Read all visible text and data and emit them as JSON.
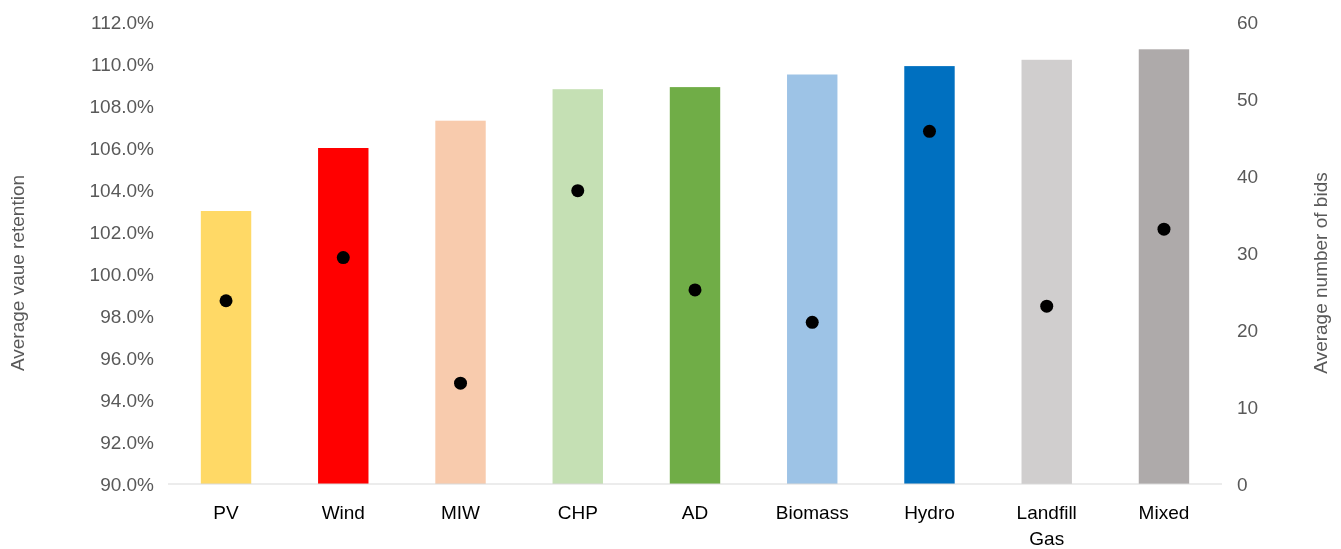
{
  "chart_data": {
    "type": "bar",
    "ylabel": "Average vaue retention",
    "y2label": "Average number of bids",
    "categories": [
      "PV",
      "Wind",
      "MIW",
      "CHP",
      "AD",
      "Biomass",
      "Hydro",
      "Landfill Gas",
      "Mixed"
    ],
    "series": [
      {
        "colors": [
          "#ffd966",
          "#ff0000",
          "#f8cbad",
          "#c5e0b4",
          "#70ad47",
          "#9dc3e6",
          "#0070c0",
          "#d0cece",
          "#aeaaaa"
        ],
        "values": [
          103.0,
          106.0,
          107.3,
          108.8,
          108.9,
          109.5,
          109.9,
          110.2,
          110.7
        ]
      },
      {
        "type": "scatter",
        "axis": "y2",
        "color": "#000000",
        "marker": "circle",
        "values": [
          23.8,
          29.4,
          13.1,
          38.1,
          25.2,
          21.0,
          45.8,
          23.1,
          33.1
        ]
      }
    ],
    "ylim": [
      90,
      112
    ],
    "yticks": [
      {
        "value": 90,
        "label": "90.0%"
      },
      {
        "value": 92,
        "label": "92.0%"
      },
      {
        "value": 94,
        "label": "94.0%"
      },
      {
        "value": 96,
        "label": "96.0%"
      },
      {
        "value": 98,
        "label": "98.0%"
      },
      {
        "value": 100,
        "label": "100.0%"
      },
      {
        "value": 102,
        "label": "102.0%"
      },
      {
        "value": 104,
        "label": "104.0%"
      },
      {
        "value": 106,
        "label": "106.0%"
      },
      {
        "value": 108,
        "label": "108.0%"
      },
      {
        "value": 110,
        "label": "110.0%"
      },
      {
        "value": 112,
        "label": "112.0%"
      }
    ],
    "y2lim": [
      0,
      60
    ],
    "y2ticks": [
      0,
      10,
      20,
      30,
      40,
      50,
      60
    ],
    "grid": false
  }
}
